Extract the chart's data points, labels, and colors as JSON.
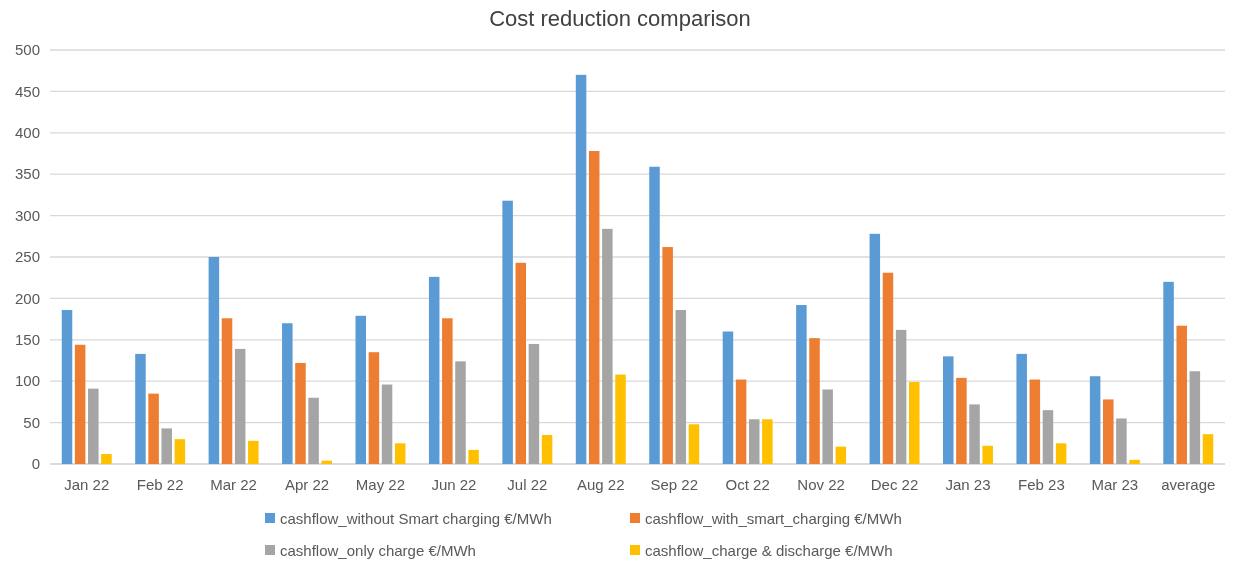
{
  "chart_data": {
    "type": "bar",
    "title": "Cost reduction comparison",
    "categories": [
      "Jan 22",
      "Feb 22",
      "Mar 22",
      "Apr 22",
      "May 22",
      "Jun 22",
      "Jul 22",
      "Aug 22",
      "Sep 22",
      "Oct 22",
      "Nov 22",
      "Dec 22",
      "Jan 23",
      "Feb 23",
      "Mar 23",
      "average"
    ],
    "series": [
      {
        "name": "cashflow_without Smart charging €/MWh",
        "color": "#5b9bd5",
        "values": [
          186,
          133,
          250,
          170,
          179,
          226,
          318,
          470,
          359,
          160,
          192,
          278,
          130,
          133,
          106,
          220
        ]
      },
      {
        "name": "cashflow_with_smart_charging €/MWh",
        "color": "#ed7d31",
        "values": [
          144,
          85,
          176,
          122,
          135,
          176,
          243,
          378,
          262,
          102,
          152,
          231,
          104,
          102,
          78,
          167
        ]
      },
      {
        "name": "cashflow_only charge €/MWh",
        "color": "#a5a5a5",
        "values": [
          91,
          43,
          139,
          80,
          96,
          124,
          145,
          284,
          186,
          54,
          90,
          162,
          72,
          65,
          55,
          112
        ]
      },
      {
        "name": "cashflow_charge & discharge €/MWh",
        "color": "#ffc000",
        "values": [
          12,
          30,
          28,
          4,
          25,
          17,
          35,
          108,
          48,
          54,
          21,
          99,
          22,
          25,
          5,
          36
        ]
      }
    ],
    "ylim": [
      0,
      500
    ],
    "yticks": [
      0,
      50,
      100,
      150,
      200,
      250,
      300,
      350,
      400,
      450,
      500
    ],
    "grid": "y",
    "legend": "bottom"
  }
}
